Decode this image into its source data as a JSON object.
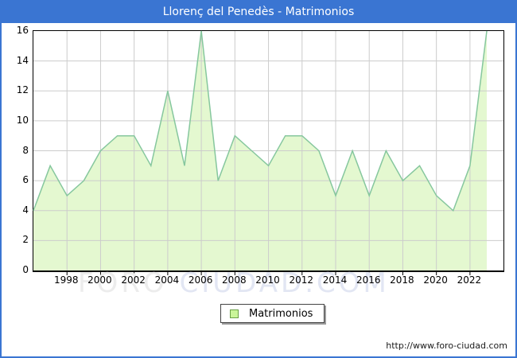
{
  "title": "Llorenç del Penedès - Matrimonios",
  "legend": {
    "label": "Matrimonios"
  },
  "watermark": {
    "part1": "FORO ",
    "part2": "CIUDAD.COM"
  },
  "footer": {
    "url": "http://www.foro-ciudad.com"
  },
  "colors": {
    "accent_blue": "#3a75d2",
    "area_fill": "#e4f8d0",
    "area_line": "#86c79e",
    "grid": "#cccccc",
    "axis": "#000000",
    "legend_swatch_fill": "#caf599",
    "legend_swatch_border": "#6aa046",
    "watermark_part1": "#ececec",
    "watermark_part2": "#e2e6f3"
  },
  "chart_data": {
    "type": "area",
    "title": "Llorenç del Penedès - Matrimonios",
    "series_name": "Matrimonios",
    "x": [
      1996,
      1997,
      1998,
      1999,
      2000,
      2001,
      2002,
      2003,
      2004,
      2005,
      2006,
      2007,
      2008,
      2009,
      2010,
      2011,
      2012,
      2013,
      2014,
      2015,
      2016,
      2017,
      2018,
      2019,
      2020,
      2021,
      2022,
      2023
    ],
    "values": [
      4,
      7,
      5,
      6,
      8,
      9,
      9,
      7,
      12,
      7,
      16,
      6,
      9,
      8,
      7,
      9,
      9,
      8,
      5,
      8,
      5,
      8,
      6,
      7,
      5,
      4,
      7,
      16
    ],
    "xlabel": "",
    "ylabel": "",
    "ylim": [
      0,
      16
    ],
    "ytick_step": 2,
    "xtick_labels": [
      1998,
      2000,
      2002,
      2004,
      2006,
      2008,
      2010,
      2012,
      2014,
      2016,
      2018,
      2020,
      2022
    ],
    "grid": true,
    "legend_position": "bottom-center"
  }
}
